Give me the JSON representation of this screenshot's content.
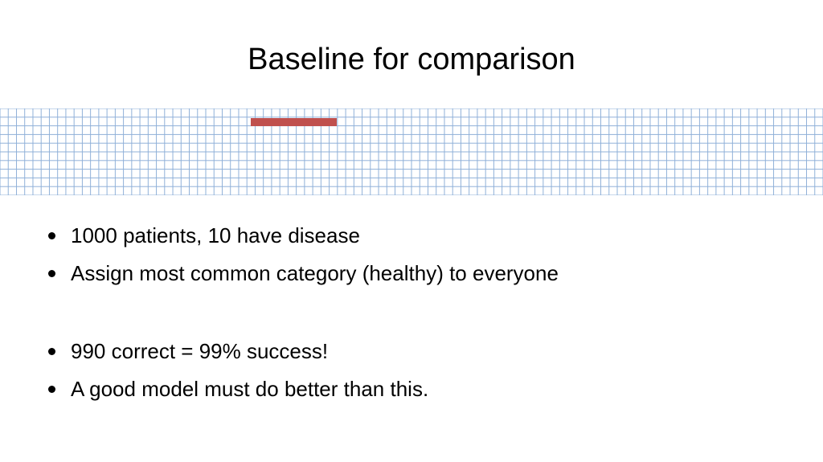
{
  "slide": {
    "title": "Baseline for comparison",
    "bullets": [
      "1000 patients, 10 have disease",
      "Assign most common category (healthy) to everyone",
      "990 correct = 99% success!",
      "A good model must do better than this."
    ]
  }
}
